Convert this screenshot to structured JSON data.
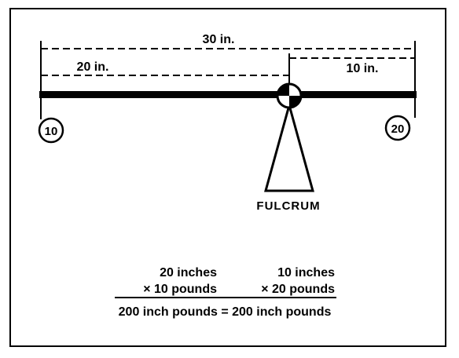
{
  "dimensions": {
    "total": "30 in.",
    "left_arm": "20 in.",
    "right_arm": "10 in."
  },
  "weights": {
    "left": "10",
    "right": "20"
  },
  "fulcrum_label": "FULCRUM",
  "equation": {
    "left_line1": "20 inches",
    "left_line2": "× 10 pounds",
    "right_line1": "10 inches",
    "right_line2": "× 20 pounds",
    "result": "200 inch pounds = 200 inch pounds"
  }
}
